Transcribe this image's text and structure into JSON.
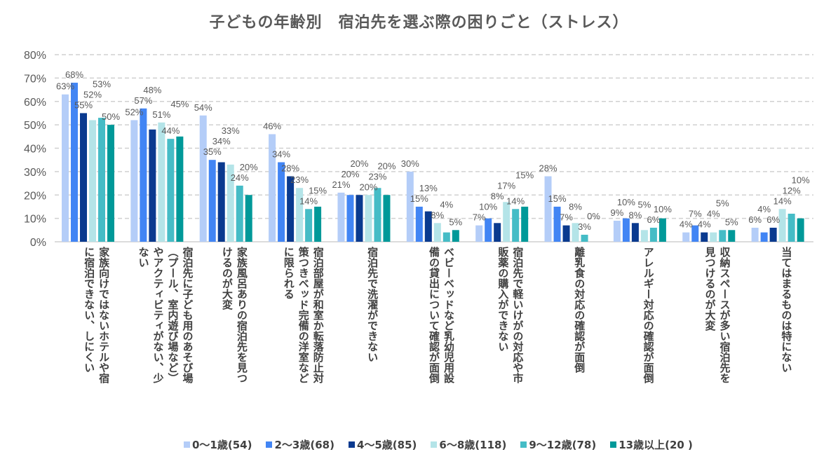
{
  "chart_data": {
    "type": "bar",
    "title": "子どもの年齢別　宿泊先を選ぶ際の困りごと（ストレス）",
    "ylim": [
      0,
      80
    ],
    "yticks": [
      "0%",
      "10%",
      "20%",
      "30%",
      "40%",
      "50%",
      "60%",
      "70%",
      "80%"
    ],
    "grid": true,
    "legend_position": "bottom",
    "categories": [
      [
        "家族向けではないホテルや宿",
        "に宿泊できない、しにくい"
      ],
      [
        "宿泊先に子ども用のあそび場",
        "（プール、室内遊び場など）",
        "やアクティビティがない、少",
        "ない"
      ],
      [
        "家族風呂ありの宿泊先を見つ",
        "けるのが大変"
      ],
      [
        "宿泊部屋が和室か転落防止対",
        "策つきベッド完備の洋室など",
        "に限られる"
      ],
      [
        "宿泊先で洗濯ができない"
      ],
      [
        "ベビーベッドなど乳幼児用設",
        "備の貸出について確認が面倒"
      ],
      [
        "宿泊先で軽いけがの対応や市",
        "販薬の購入ができない"
      ],
      [
        "離乳食の対応の確認が面倒"
      ],
      [
        "アレルギー対応の確認が面倒"
      ],
      [
        "収納スペースが多い宿泊先を",
        "見つけるのが大変"
      ],
      [
        "当てはまるものは特にない"
      ]
    ],
    "series": [
      {
        "name": "0～1歳(54)",
        "color": "#b4cdf8",
        "values": [
          63,
          52,
          54,
          46,
          21,
          30,
          7,
          28,
          9,
          4,
          6
        ]
      },
      {
        "name": "2～3歳(68)",
        "color": "#4285f4",
        "values": [
          68,
          57,
          35,
          34,
          20,
          15,
          10,
          15,
          10,
          7,
          4
        ]
      },
      {
        "name": "4～5歳(85)",
        "color": "#0a3a8f",
        "values": [
          55,
          48,
          34,
          28,
          20,
          13,
          8,
          7,
          8,
          4,
          6
        ]
      },
      {
        "name": "6～8歳(118)",
        "color": "#b4e4e8",
        "values": [
          52,
          51,
          33,
          23,
          20,
          8,
          17,
          8,
          5,
          4,
          14
        ]
      },
      {
        "name": "9～12歳(78)",
        "color": "#45bcc6",
        "values": [
          53,
          44,
          24,
          14,
          23,
          4,
          14,
          3,
          6,
          5,
          12
        ]
      },
      {
        "name": "13歳以上(20 )",
        "color": "#009999",
        "values": [
          50,
          45,
          20,
          15,
          20,
          5,
          15,
          0,
          10,
          5,
          10
        ]
      }
    ]
  }
}
